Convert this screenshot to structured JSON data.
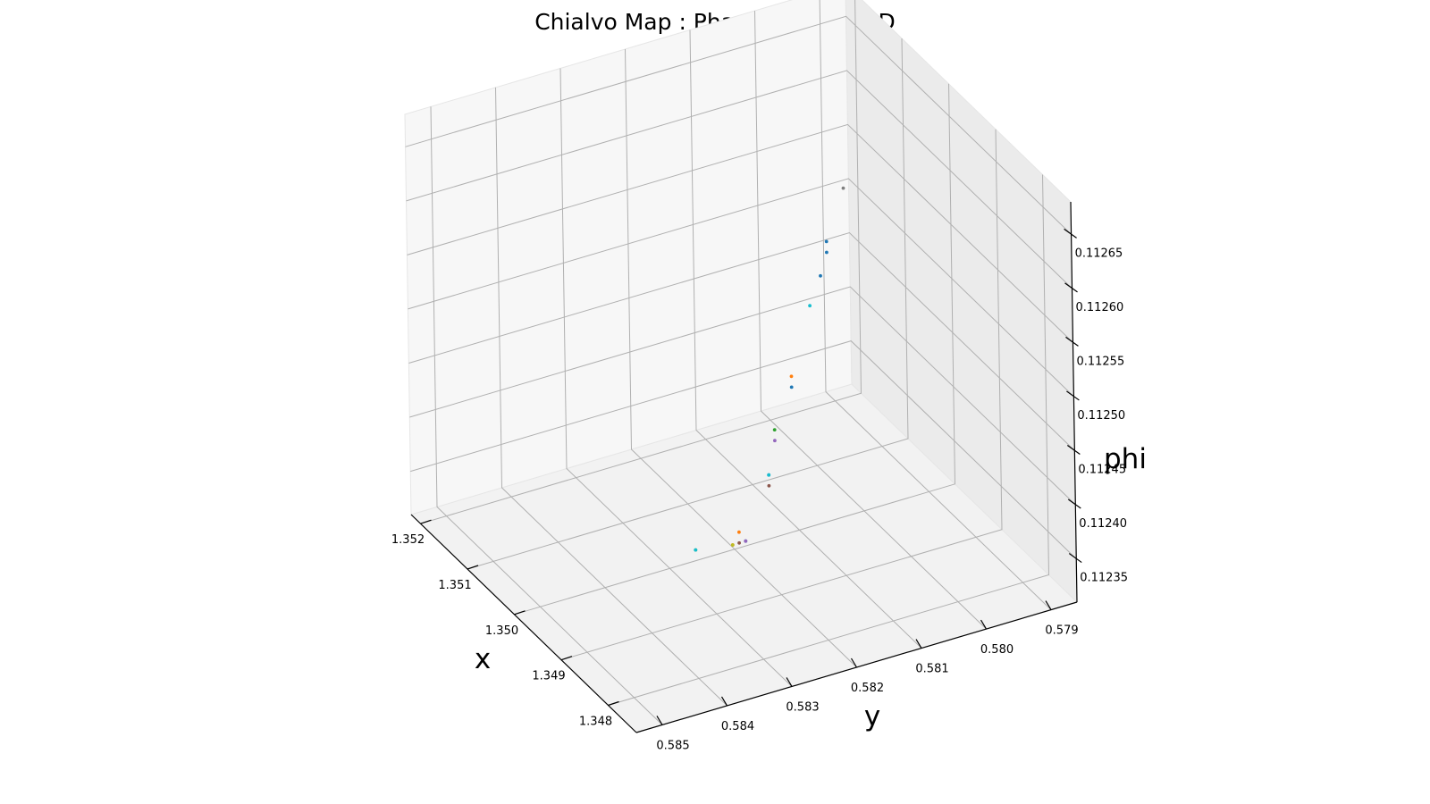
{
  "chart_data": {
    "type": "scatter",
    "title": "Chialvo Map : PhaseSpace of 3D",
    "xlabel": "x",
    "ylabel": "y",
    "zlabel": "phi",
    "xlim": [
      1.3474,
      1.3522
    ],
    "ylim": [
      0.5786,
      0.5854
    ],
    "zlim": [
      0.11231,
      0.11268
    ],
    "xticks": [
      "1.352",
      "1.351",
      "1.350",
      "1.349",
      "1.348"
    ],
    "xtick_values": [
      1.352,
      1.351,
      1.35,
      1.349,
      1.348
    ],
    "yticks": [
      "0.585",
      "0.584",
      "0.583",
      "0.582",
      "0.581",
      "0.580",
      "0.579"
    ],
    "ytick_values": [
      0.585,
      0.584,
      0.583,
      0.582,
      0.581,
      0.58,
      0.579
    ],
    "zticks": [
      "0.11235",
      "0.11240",
      "0.11245",
      "0.11250",
      "0.11255",
      "0.11260",
      "0.11265"
    ],
    "ztick_values": [
      0.11235,
      0.1124,
      0.11245,
      0.1125,
      0.11255,
      0.1126,
      0.11265
    ],
    "grid": true,
    "points": [
      {
        "x": 1.3495,
        "y": 0.5806,
        "z": 0.11264,
        "color": "#7f7f7f"
      },
      {
        "x": 1.3496,
        "y": 0.5808,
        "z": 0.11259,
        "color": "#1f77b4"
      },
      {
        "x": 1.3496,
        "y": 0.5808,
        "z": 0.11258,
        "color": "#1f77b4"
      },
      {
        "x": 1.3496,
        "y": 0.5809,
        "z": 0.11256,
        "color": "#1f77b4"
      },
      {
        "x": 1.3497,
        "y": 0.581,
        "z": 0.11253,
        "color": "#17becf"
      },
      {
        "x": 1.3497,
        "y": 0.5813,
        "z": 0.11247,
        "color": "#ff7f0e"
      },
      {
        "x": 1.3497,
        "y": 0.5813,
        "z": 0.11246,
        "color": "#1f77b4"
      },
      {
        "x": 1.3498,
        "y": 0.5815,
        "z": 0.11242,
        "color": "#2ca02c"
      },
      {
        "x": 1.3498,
        "y": 0.5815,
        "z": 0.11241,
        "color": "#9467bd"
      },
      {
        "x": 1.3498,
        "y": 0.5816,
        "z": 0.11238,
        "color": "#1f77b4"
      },
      {
        "x": 1.3498,
        "y": 0.5816,
        "z": 0.11238,
        "color": "#17becf"
      },
      {
        "x": 1.3498,
        "y": 0.5816,
        "z": 0.11237,
        "color": "#8c564b"
      },
      {
        "x": 1.3499,
        "y": 0.5819,
        "z": 0.11232,
        "color": "#1f77b4"
      },
      {
        "x": 1.3499,
        "y": 0.5819,
        "z": 0.11232,
        "color": "#9467bd"
      },
      {
        "x": 1.3499,
        "y": 0.582,
        "z": 0.11233,
        "color": "#ff7f0e"
      },
      {
        "x": 1.3499,
        "y": 0.582,
        "z": 0.11232,
        "color": "#8c564b"
      },
      {
        "x": 1.3499,
        "y": 0.5821,
        "z": 0.11232,
        "color": "#ff7f0e"
      },
      {
        "x": 1.3499,
        "y": 0.5821,
        "z": 0.11232,
        "color": "#bcbd22"
      },
      {
        "x": 1.35,
        "y": 0.5826,
        "z": 0.11232,
        "color": "#2ca02c"
      },
      {
        "x": 1.35,
        "y": 0.5826,
        "z": 0.11232,
        "color": "#17becf"
      }
    ]
  }
}
